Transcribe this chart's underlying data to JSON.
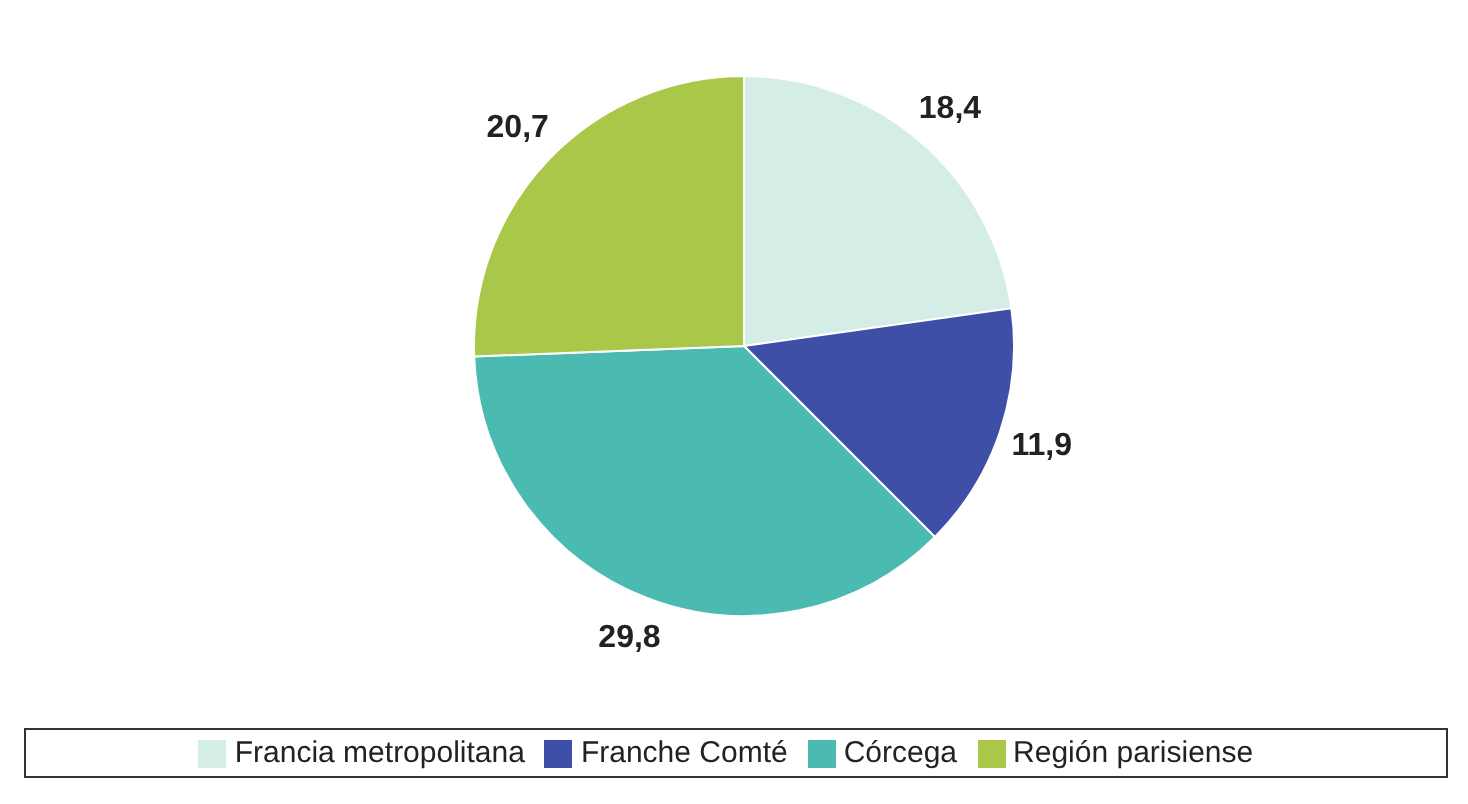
{
  "chart_data": {
    "type": "pie",
    "categories": [
      "Francia metropolitana",
      "Franche Comté",
      "Córcega",
      "Región parisiense"
    ],
    "values": [
      18.4,
      11.9,
      29.8,
      20.7
    ],
    "colors": [
      "#d4ede6",
      "#3f4ea6",
      "#4bbab0",
      "#a9c84a"
    ],
    "value_labels": [
      "18,4",
      "11,9",
      "29,8",
      "20,7"
    ],
    "legend": "bottom"
  }
}
